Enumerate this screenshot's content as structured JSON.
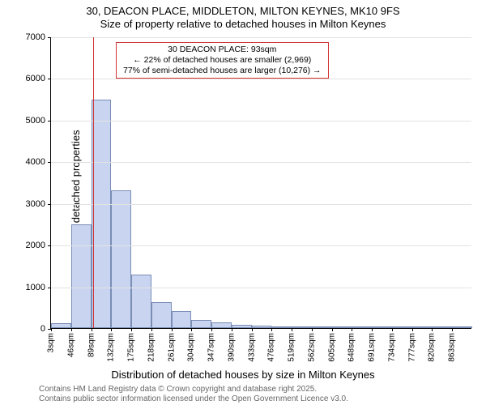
{
  "title": "30, DEACON PLACE, MIDDLETON, MILTON KEYNES, MK10 9FS",
  "subtitle": "Size of property relative to detached houses in Milton Keynes",
  "y_label": "Number of detached properties",
  "x_label": "Distribution of detached houses by size in Milton Keynes",
  "footer1": "Contains HM Land Registry data © Crown copyright and database right 2025.",
  "footer2": "Contains public sector information licensed under the Open Government Licence v3.0.",
  "chart": {
    "type": "histogram",
    "ylim": [
      0,
      7000
    ],
    "ytick_step": 1000,
    "yticks": [
      0,
      1000,
      2000,
      3000,
      4000,
      5000,
      6000,
      7000
    ],
    "x_start": 3,
    "x_step": 43,
    "x_count": 21,
    "xticks_labels": [
      "3sqm",
      "46sqm",
      "89sqm",
      "132sqm",
      "175sqm",
      "218sqm",
      "261sqm",
      "304sqm",
      "347sqm",
      "390sqm",
      "433sqm",
      "476sqm",
      "519sqm",
      "562sqm",
      "605sqm",
      "648sqm",
      "691sqm",
      "734sqm",
      "777sqm",
      "820sqm",
      "863sqm"
    ],
    "values": [
      120,
      2480,
      5480,
      3310,
      1280,
      620,
      410,
      200,
      130,
      80,
      55,
      35,
      30,
      20,
      18,
      15,
      12,
      8,
      8,
      5,
      4
    ],
    "bar_fill": "#c9d5f0",
    "bar_border": "#7a8db5",
    "grid_color": "#e2e2e2",
    "axis_color": "#000000",
    "background": "#ffffff",
    "tick_fontsize": 11,
    "label_fontsize": 13,
    "title_fontsize": 13
  },
  "annotation": {
    "marker_x": 93,
    "marker_color": "#d33333",
    "line1": "30 DEACON PLACE: 93sqm",
    "line2": "← 22% of detached houses are smaller (2,969)",
    "line3": "77% of semi-detached houses are larger (10,276) →",
    "box_border": "#d33333",
    "box_bg": "#ffffff",
    "box_fontsize": 10.5
  }
}
